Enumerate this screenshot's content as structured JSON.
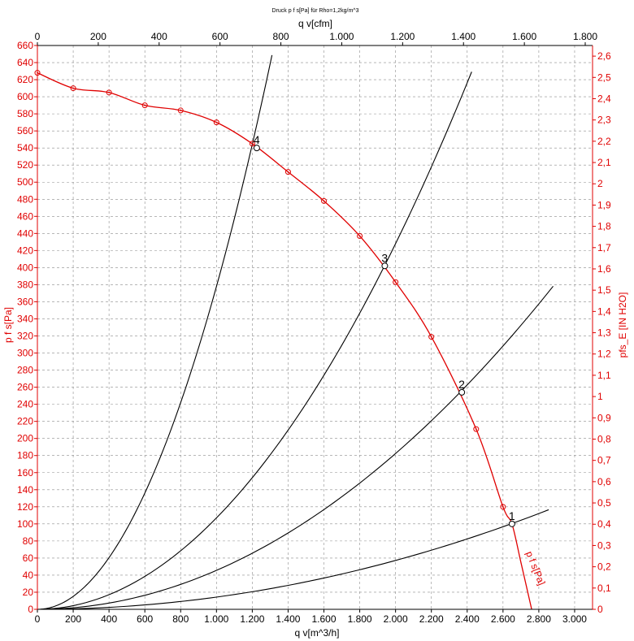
{
  "chart_data": {
    "type": "line",
    "title": "Druck p f s[Pa] für Rho=1,2kg/m^3",
    "x_bottom": {
      "label": "q v[m^3/h]",
      "range": [
        0,
        3100
      ],
      "ticks": [
        0,
        200,
        400,
        600,
        800,
        1000,
        1200,
        1400,
        1600,
        1800,
        2000,
        2200,
        2400,
        2600,
        2800,
        3000
      ],
      "tick_labels": [
        "0",
        "200",
        "400",
        "600",
        "800",
        "1.000",
        "1.200",
        "1.400",
        "1.600",
        "1.800",
        "2.000",
        "2.200",
        "2.400",
        "2.600",
        "2.800",
        "3.000"
      ]
    },
    "x_top": {
      "label": "q v[cfm]",
      "range": [
        0,
        1824
      ],
      "ticks": [
        0,
        200,
        400,
        600,
        800,
        1000,
        1200,
        1400,
        1600,
        1800
      ],
      "tick_labels": [
        "0",
        "200",
        "400",
        "600",
        "800",
        "1.000",
        "1.200",
        "1.400",
        "1.600",
        "1.800"
      ]
    },
    "y_left": {
      "label": "p f s[Pa]",
      "range": [
        0,
        660
      ],
      "ticks": [
        0,
        20,
        40,
        60,
        80,
        100,
        120,
        140,
        160,
        180,
        200,
        220,
        240,
        260,
        280,
        300,
        320,
        340,
        360,
        380,
        400,
        420,
        440,
        460,
        480,
        500,
        520,
        540,
        560,
        580,
        600,
        620,
        640,
        660
      ],
      "tick_labels": [
        "0",
        "20",
        "40",
        "60",
        "80",
        "100",
        "120",
        "140",
        "160",
        "180",
        "200",
        "220",
        "240",
        "260",
        "280",
        "300",
        "320",
        "340",
        "360",
        "380",
        "400",
        "420",
        "440",
        "460",
        "480",
        "500",
        "520",
        "540",
        "560",
        "580",
        "600",
        "620",
        "640",
        "660"
      ]
    },
    "y_right": {
      "label": "pfs_E [IN H2O]",
      "range": [
        0,
        2.65
      ],
      "ticks": [
        0,
        0.1,
        0.2,
        0.3,
        0.4,
        0.5,
        0.6,
        0.7,
        0.8,
        0.9,
        1.0,
        1.1,
        1.2,
        1.3,
        1.4,
        1.5,
        1.6,
        1.7,
        1.8,
        1.9,
        2.0,
        2.1,
        2.2,
        2.3,
        2.4,
        2.5,
        2.6
      ],
      "tick_labels": [
        "0",
        "0,1",
        "0,2",
        "0,3",
        "0,4",
        "0,5",
        "0,6",
        "0,7",
        "0,8",
        "0,9",
        "1",
        "1,1",
        "1,2",
        "1,3",
        "1,4",
        "1,5",
        "1,6",
        "1,7",
        "1,8",
        "1,9",
        "2",
        "2,1",
        "2,2",
        "2,3",
        "2,4",
        "2,5",
        "2,6"
      ]
    },
    "grid": true,
    "fan_curve": {
      "name": "p f s[Pa]",
      "color": "#e00000",
      "x": [
        0,
        200,
        400,
        600,
        800,
        1000,
        1200,
        1400,
        1600,
        1800,
        2000,
        2200,
        2450,
        2600,
        2650,
        2700,
        2760
      ],
      "y": [
        628,
        610,
        605,
        590,
        584,
        570,
        545,
        512,
        478,
        437,
        383,
        319,
        211,
        120,
        100,
        55,
        0
      ],
      "markers_x": [
        0,
        200,
        400,
        600,
        800,
        1000,
        1200,
        1400,
        1600,
        1800,
        2000,
        2200,
        2450,
        2600
      ],
      "markers_y": [
        628,
        610,
        605,
        590,
        584,
        570,
        545,
        512,
        478,
        437,
        383,
        319,
        211,
        120
      ]
    },
    "system_curves": [
      {
        "k": 1.43e-05,
        "x_max": 2855,
        "color": "#000000"
      },
      {
        "k": 4.56e-05,
        "x_max": 2880,
        "color": "#000000"
      },
      {
        "k": 0.000107,
        "x_max": 2425,
        "color": "#000000"
      },
      {
        "k": 0.000378,
        "x_max": 1310,
        "color": "#000000"
      }
    ],
    "operating_points": [
      {
        "label": "1",
        "x": 2650,
        "y": 100
      },
      {
        "label": "2",
        "x": 2370,
        "y": 254
      },
      {
        "label": "3",
        "x": 1940,
        "y": 402
      },
      {
        "label": "4",
        "x": 1225,
        "y": 540
      }
    ]
  }
}
